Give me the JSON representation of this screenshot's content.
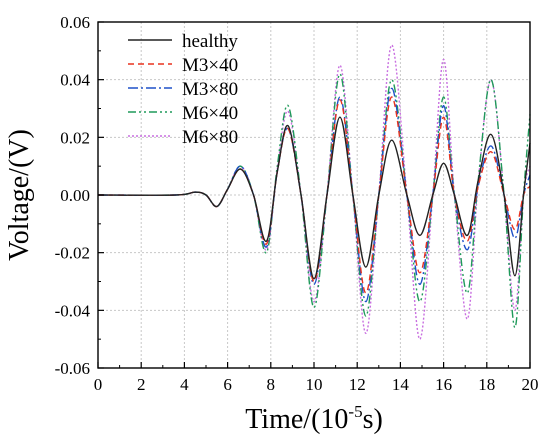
{
  "chart_data": {
    "type": "line",
    "xlabel": "Time/(10",
    "xlabel_sup": "-5",
    "xlabel_end": "s)",
    "ylabel": "Voltage/(V)",
    "xlim": [
      0,
      20
    ],
    "ylim": [
      -0.06,
      0.06
    ],
    "xticks": [
      0,
      2,
      4,
      6,
      8,
      10,
      12,
      14,
      16,
      18,
      20
    ],
    "yticks": [
      -0.06,
      -0.04,
      -0.02,
      0.0,
      0.02,
      0.04,
      0.06
    ],
    "ytick_labels": [
      "-0.06",
      "-0.04",
      "-0.02",
      "0.00",
      "0.02",
      "0.04",
      "0.06"
    ],
    "grid": true,
    "grid_style": "dotted",
    "legend_position": "top-left",
    "series": [
      {
        "name": "healthy",
        "color": "#222222",
        "dash": "solid",
        "points": [
          [
            0,
            0
          ],
          [
            3.6,
            0
          ],
          [
            4.5,
            0.001
          ],
          [
            5.0,
            0.0
          ],
          [
            5.5,
            -0.004
          ],
          [
            6.0,
            0.002
          ],
          [
            6.6,
            0.009
          ],
          [
            7.2,
            0.0
          ],
          [
            7.8,
            -0.016
          ],
          [
            8.3,
            0.008
          ],
          [
            8.8,
            0.024
          ],
          [
            9.4,
            0.0
          ],
          [
            10.0,
            -0.029
          ],
          [
            10.6,
            0.0
          ],
          [
            11.2,
            0.027
          ],
          [
            11.8,
            0.0
          ],
          [
            12.4,
            -0.025
          ],
          [
            13.0,
            0.0
          ],
          [
            13.6,
            0.019
          ],
          [
            14.3,
            0.0
          ],
          [
            14.9,
            -0.014
          ],
          [
            15.5,
            0.0
          ],
          [
            16.0,
            0.011
          ],
          [
            16.5,
            0.0
          ],
          [
            17.1,
            -0.014
          ],
          [
            17.6,
            0.005
          ],
          [
            18.2,
            0.021
          ],
          [
            18.8,
            0.0
          ],
          [
            19.3,
            -0.028
          ],
          [
            19.7,
            0.0
          ],
          [
            20.0,
            0.018
          ]
        ]
      },
      {
        "name": "M3×40",
        "color": "#e8321e",
        "dash": "6,4",
        "points": [
          [
            0,
            0
          ],
          [
            3.6,
            0
          ],
          [
            4.5,
            0.001
          ],
          [
            5.0,
            0.0
          ],
          [
            5.5,
            -0.004
          ],
          [
            6.0,
            0.002
          ],
          [
            6.6,
            0.009
          ],
          [
            7.2,
            0.0
          ],
          [
            7.8,
            -0.017
          ],
          [
            8.3,
            0.008
          ],
          [
            8.8,
            0.023
          ],
          [
            9.4,
            0.0
          ],
          [
            10.0,
            -0.03
          ],
          [
            10.6,
            0.0
          ],
          [
            11.2,
            0.033
          ],
          [
            11.8,
            0.0
          ],
          [
            12.4,
            -0.034
          ],
          [
            13.0,
            0.0
          ],
          [
            13.6,
            0.034
          ],
          [
            14.3,
            0.0
          ],
          [
            14.9,
            -0.027
          ],
          [
            15.5,
            0.0
          ],
          [
            16.0,
            0.027
          ],
          [
            16.5,
            0.0
          ],
          [
            17.1,
            -0.016
          ],
          [
            17.6,
            0.003
          ],
          [
            18.2,
            0.015
          ],
          [
            18.8,
            0.0
          ],
          [
            19.3,
            -0.012
          ],
          [
            19.7,
            0.0
          ],
          [
            20.0,
            0.003
          ]
        ]
      },
      {
        "name": "M3×80",
        "color": "#1e50c8",
        "dash": "10,3,2,3",
        "points": [
          [
            0,
            0
          ],
          [
            3.6,
            0
          ],
          [
            4.5,
            0.001
          ],
          [
            5.0,
            0.0
          ],
          [
            5.5,
            -0.004
          ],
          [
            6.0,
            0.002
          ],
          [
            6.6,
            0.01
          ],
          [
            7.2,
            0.0
          ],
          [
            7.8,
            -0.018
          ],
          [
            8.3,
            0.008
          ],
          [
            8.8,
            0.023
          ],
          [
            9.4,
            0.0
          ],
          [
            10.0,
            -0.031
          ],
          [
            10.6,
            0.0
          ],
          [
            11.2,
            0.034
          ],
          [
            11.8,
            0.0
          ],
          [
            12.4,
            -0.037
          ],
          [
            13.0,
            0.0
          ],
          [
            13.6,
            0.037
          ],
          [
            14.3,
            0.0
          ],
          [
            14.9,
            -0.031
          ],
          [
            15.5,
            0.0
          ],
          [
            16.0,
            0.031
          ],
          [
            16.5,
            0.0
          ],
          [
            17.1,
            -0.019
          ],
          [
            17.6,
            0.003
          ],
          [
            18.2,
            0.017
          ],
          [
            18.8,
            0.0
          ],
          [
            19.3,
            -0.015
          ],
          [
            19.7,
            0.0
          ],
          [
            20.0,
            0.007
          ]
        ]
      },
      {
        "name": "M6×40",
        "color": "#1f9a5a",
        "dash": "8,3,2,3,2,3",
        "points": [
          [
            0,
            0
          ],
          [
            3.6,
            0
          ],
          [
            4.5,
            0.001
          ],
          [
            5.0,
            0.0
          ],
          [
            5.5,
            -0.004
          ],
          [
            6.0,
            0.002
          ],
          [
            6.6,
            0.01
          ],
          [
            7.2,
            0.0
          ],
          [
            7.8,
            -0.02
          ],
          [
            8.3,
            0.01
          ],
          [
            8.8,
            0.031
          ],
          [
            9.4,
            0.0
          ],
          [
            10.0,
            -0.039
          ],
          [
            10.6,
            0.0
          ],
          [
            11.2,
            0.042
          ],
          [
            11.8,
            0.0
          ],
          [
            12.4,
            -0.042
          ],
          [
            13.0,
            0.0
          ],
          [
            13.6,
            0.04
          ],
          [
            14.3,
            0.0
          ],
          [
            14.9,
            -0.037
          ],
          [
            15.5,
            0.0
          ],
          [
            16.0,
            0.034
          ],
          [
            16.5,
            0.0
          ],
          [
            17.1,
            -0.034
          ],
          [
            17.6,
            0.005
          ],
          [
            18.2,
            0.04
          ],
          [
            18.8,
            0.0
          ],
          [
            19.3,
            -0.046
          ],
          [
            19.7,
            0.0
          ],
          [
            20.0,
            0.028
          ]
        ]
      },
      {
        "name": "M6×80",
        "color": "#c86ee0",
        "dash": "2,2",
        "points": [
          [
            0,
            0
          ],
          [
            3.6,
            0
          ],
          [
            4.5,
            0.001
          ],
          [
            5.0,
            0.0
          ],
          [
            5.5,
            -0.004
          ],
          [
            6.0,
            0.002
          ],
          [
            6.6,
            0.01
          ],
          [
            7.2,
            0.0
          ],
          [
            7.8,
            -0.019
          ],
          [
            8.3,
            0.009
          ],
          [
            8.8,
            0.029
          ],
          [
            9.4,
            0.0
          ],
          [
            10.0,
            -0.037
          ],
          [
            10.6,
            0.0
          ],
          [
            11.2,
            0.045
          ],
          [
            11.8,
            0.0
          ],
          [
            12.4,
            -0.048
          ],
          [
            13.0,
            0.0
          ],
          [
            13.6,
            0.052
          ],
          [
            14.3,
            0.0
          ],
          [
            14.9,
            -0.05
          ],
          [
            15.5,
            0.0
          ],
          [
            16.0,
            0.047
          ],
          [
            16.5,
            0.0
          ],
          [
            17.1,
            -0.043
          ],
          [
            17.6,
            0.004
          ],
          [
            18.2,
            0.04
          ],
          [
            18.8,
            0.0
          ],
          [
            19.3,
            -0.04
          ],
          [
            19.7,
            0.0
          ],
          [
            20.0,
            0.01
          ]
        ]
      }
    ]
  }
}
